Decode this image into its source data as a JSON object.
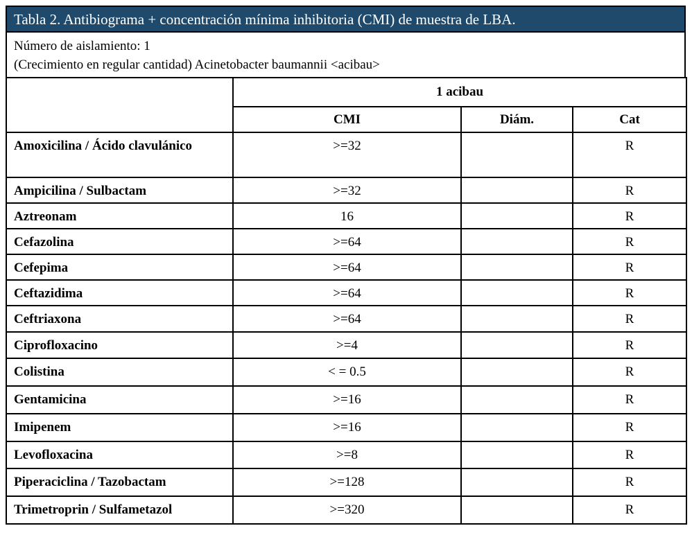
{
  "caption": "Tabla 2. Antibiograma + concentración mínima inhibitoria (CMI) de muestra de LBA.",
  "isolate_line": "Número de aislamiento: 1",
  "growth_line": "(Crecimiento en regular cantidad) Acinetobacter baumannii <acibau>",
  "group_header": "1 acibau",
  "columns": [
    "CMI",
    "Diám.",
    "Cat"
  ],
  "rows": [
    {
      "drug": "Amoxicilina / Ácido clavulánico",
      "cmi": ">=32",
      "diam": "",
      "cat": "R"
    },
    {
      "drug": "Ampicilina / Sulbactam",
      "cmi": ">=32",
      "diam": "",
      "cat": "R"
    },
    {
      "drug": "Aztreonam",
      "cmi": "16",
      "diam": "",
      "cat": "R"
    },
    {
      "drug": "Cefazolina",
      "cmi": ">=64",
      "diam": "",
      "cat": "R"
    },
    {
      "drug": "Cefepima",
      "cmi": ">=64",
      "diam": "",
      "cat": "R"
    },
    {
      "drug": "Ceftazidima",
      "cmi": ">=64",
      "diam": "",
      "cat": "R"
    },
    {
      "drug": "Ceftriaxona",
      "cmi": ">=64",
      "diam": "",
      "cat": "R"
    },
    {
      "drug": "Ciprofloxacino",
      "cmi": ">=4",
      "diam": "",
      "cat": "R"
    },
    {
      "drug": "Colistina",
      "cmi": "< = 0.5",
      "diam": "",
      "cat": "R"
    },
    {
      "drug": "Gentamicina",
      "cmi": ">=16",
      "diam": "",
      "cat": "R"
    },
    {
      "drug": "Imipenem",
      "cmi": ">=16",
      "diam": "",
      "cat": "R"
    },
    {
      "drug": "Levofloxacina",
      "cmi": ">=8",
      "diam": "",
      "cat": "R"
    },
    {
      "drug": "Piperaciclina / Tazobactam",
      "cmi": ">=128",
      "diam": "",
      "cat": "R"
    },
    {
      "drug": "Trimetroprin / Sulfametazol",
      "cmi": ">=320",
      "diam": "",
      "cat": "R"
    }
  ]
}
